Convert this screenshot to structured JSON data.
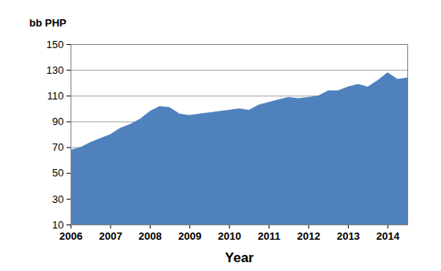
{
  "chart_data": {
    "type": "area",
    "y_label": "bb PHP",
    "x_label": "Year",
    "x": [
      2006,
      2006.25,
      2006.5,
      2006.75,
      2007,
      2007.25,
      2007.5,
      2007.75,
      2008,
      2008.25,
      2008.5,
      2008.75,
      2009,
      2009.25,
      2009.5,
      2009.75,
      2010,
      2010.25,
      2010.5,
      2010.75,
      2011,
      2011.25,
      2011.5,
      2011.75,
      2012,
      2012.25,
      2012.5,
      2012.75,
      2013,
      2013.25,
      2013.5,
      2013.75,
      2014,
      2014.25,
      2014.5
    ],
    "values": [
      68,
      70,
      74,
      77,
      80,
      85,
      88,
      92,
      98,
      102,
      101,
      96,
      95,
      96,
      97,
      98,
      99,
      100,
      99,
      103,
      105,
      107,
      109,
      108,
      109,
      110,
      114,
      114,
      117,
      119,
      117,
      122,
      128,
      123,
      124
    ],
    "color": "#4f81bd",
    "xlim": [
      2006,
      2014.5
    ],
    "xticks": [
      2006,
      2007,
      2008,
      2009,
      2010,
      2011,
      2012,
      2013,
      2014
    ],
    "ylim": [
      10,
      150
    ],
    "yticks": [
      10,
      30,
      50,
      70,
      90,
      110,
      130,
      150
    ],
    "grid": true
  }
}
